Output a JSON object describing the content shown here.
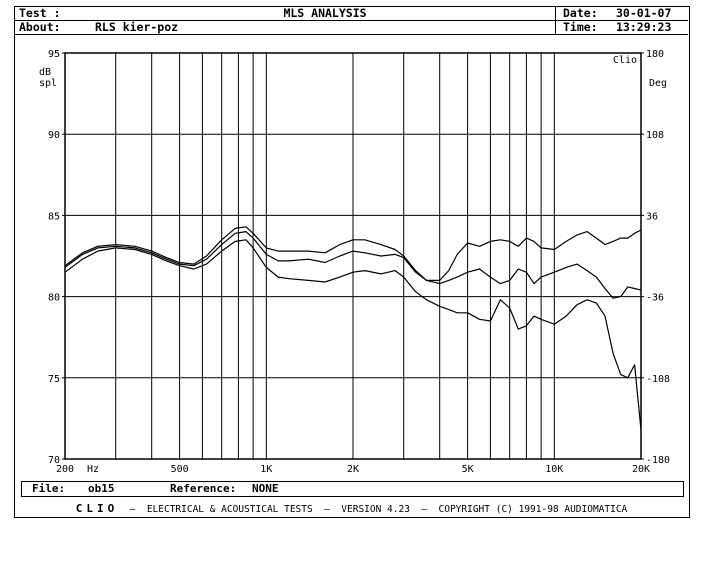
{
  "header": {
    "test_label": "Test :",
    "test_value": "",
    "about_label": "About:",
    "about_value": "RLS kier-poz",
    "title": "MLS ANALYSIS",
    "date_label": "Date:",
    "date_value": "30-01-07",
    "time_label": "Time:",
    "time_value": "13:29:23"
  },
  "footer": {
    "file_label": "File:",
    "file_value": "ob15",
    "reference_label": "Reference:",
    "reference_value": "NONE"
  },
  "bottom_bar": {
    "brand": "CLIO",
    "text": "–  ELECTRICAL & ACOUSTICAL TESTS  –  VERSION 4.23  –  COPYRIGHT (C) 1991-98 AUDIOMATICA"
  },
  "chart_data": {
    "type": "line",
    "title": "",
    "corner_label": "Clio",
    "xlabel": "Hz",
    "ylabel": "dB spl",
    "y2label": "Deg",
    "x_scale": "log",
    "xlim": [
      200,
      20000
    ],
    "ylim": [
      70,
      95
    ],
    "y2lim": [
      -180,
      180
    ],
    "x_ticks": [
      {
        "value": 200,
        "label": "200"
      },
      {
        "value": 500,
        "label": "500"
      },
      {
        "value": 1000,
        "label": "1K"
      },
      {
        "value": 2000,
        "label": "2K"
      },
      {
        "value": 5000,
        "label": "5K"
      },
      {
        "value": 10000,
        "label": "10K"
      },
      {
        "value": 20000,
        "label": "20K"
      }
    ],
    "x_gridlines": [
      300,
      400,
      500,
      600,
      700,
      800,
      900,
      1000,
      2000,
      3000,
      4000,
      5000,
      6000,
      7000,
      8000,
      9000,
      10000
    ],
    "y_ticks": [
      70,
      75,
      80,
      85,
      90,
      95
    ],
    "y2_ticks": [
      {
        "value": -180,
        "label": "-180"
      },
      {
        "value": -108,
        "label": "-108"
      },
      {
        "value": -36,
        "label": "-36"
      },
      {
        "value": 36,
        "label": "36"
      },
      {
        "value": 108,
        "label": "108"
      },
      {
        "value": 180,
        "label": "180"
      }
    ],
    "grid": true,
    "series": [
      {
        "x": [
          200,
          230,
          260,
          300,
          350,
          400,
          450,
          500,
          560,
          620,
          700,
          780,
          850,
          900,
          1000,
          1100,
          1200,
          1400,
          1600,
          1800,
          2000,
          2200,
          2500,
          2800,
          3000,
          3300,
          3600,
          4000,
          4300,
          4600,
          5000,
          5500,
          6000,
          6500,
          7000,
          7500,
          8000,
          8500,
          9000,
          10000,
          11000,
          12000,
          13000,
          14000,
          15000,
          16000,
          17000,
          18000,
          19000,
          20000
        ],
        "y": [
          81.5,
          82.3,
          82.8,
          83.0,
          82.9,
          82.6,
          82.2,
          81.9,
          81.7,
          82.0,
          82.8,
          83.4,
          83.5,
          83.0,
          81.8,
          81.2,
          81.1,
          81.0,
          80.9,
          81.2,
          81.5,
          81.6,
          81.4,
          81.6,
          81.2,
          80.3,
          79.8,
          79.4,
          79.2,
          79.0,
          79.0,
          78.6,
          78.5,
          79.8,
          79.3,
          78.0,
          78.2,
          78.8,
          78.6,
          78.3,
          78.8,
          79.5,
          79.8,
          79.6,
          78.8,
          76.5,
          75.2,
          75.0,
          75.8,
          71.8
        ]
      },
      {
        "x": [
          200,
          230,
          260,
          300,
          350,
          400,
          450,
          500,
          560,
          620,
          700,
          780,
          850,
          900,
          1000,
          1100,
          1200,
          1400,
          1600,
          1800,
          2000,
          2200,
          2500,
          2800,
          3000,
          3300,
          3600,
          4000,
          4300,
          4600,
          5000,
          5500,
          6000,
          6500,
          7000,
          7500,
          8000,
          8500,
          9000,
          10000,
          11000,
          12000,
          13000,
          14000,
          15000,
          16000,
          17000,
          18000,
          19000,
          20000
        ],
        "y": [
          81.8,
          82.6,
          83.0,
          83.1,
          83.0,
          82.7,
          82.3,
          82.0,
          81.9,
          82.3,
          83.2,
          83.9,
          84.0,
          83.6,
          82.6,
          82.2,
          82.2,
          82.3,
          82.1,
          82.5,
          82.8,
          82.7,
          82.5,
          82.6,
          82.4,
          81.5,
          81.0,
          80.8,
          81.0,
          81.2,
          81.5,
          81.7,
          81.2,
          80.8,
          81.0,
          81.7,
          81.5,
          80.8,
          81.2,
          81.5,
          81.8,
          82.0,
          81.6,
          81.2,
          80.5,
          79.9,
          80.0,
          80.6,
          80.5,
          80.4
        ]
      },
      {
        "x": [
          200,
          230,
          260,
          300,
          350,
          400,
          450,
          500,
          560,
          620,
          700,
          780,
          850,
          900,
          1000,
          1100,
          1200,
          1400,
          1600,
          1800,
          2000,
          2200,
          2500,
          2800,
          3000,
          3300,
          3600,
          4000,
          4300,
          4600,
          5000,
          5500,
          6000,
          6500,
          7000,
          7500,
          8000,
          8500,
          9000,
          10000,
          11000,
          12000,
          13000,
          14000,
          15000,
          16000,
          17000,
          18000,
          19000,
          20000
        ],
        "y": [
          81.9,
          82.7,
          83.1,
          83.2,
          83.1,
          82.8,
          82.4,
          82.1,
          82.0,
          82.5,
          83.5,
          84.2,
          84.3,
          83.9,
          83.0,
          82.8,
          82.8,
          82.8,
          82.7,
          83.2,
          83.5,
          83.5,
          83.2,
          82.9,
          82.5,
          81.6,
          81.0,
          81.0,
          81.6,
          82.6,
          83.3,
          83.1,
          83.4,
          83.5,
          83.4,
          83.1,
          83.6,
          83.4,
          83.0,
          82.9,
          83.4,
          83.8,
          84.0,
          83.6,
          83.2,
          83.4,
          83.6,
          83.6,
          83.9,
          84.1
        ]
      }
    ]
  }
}
